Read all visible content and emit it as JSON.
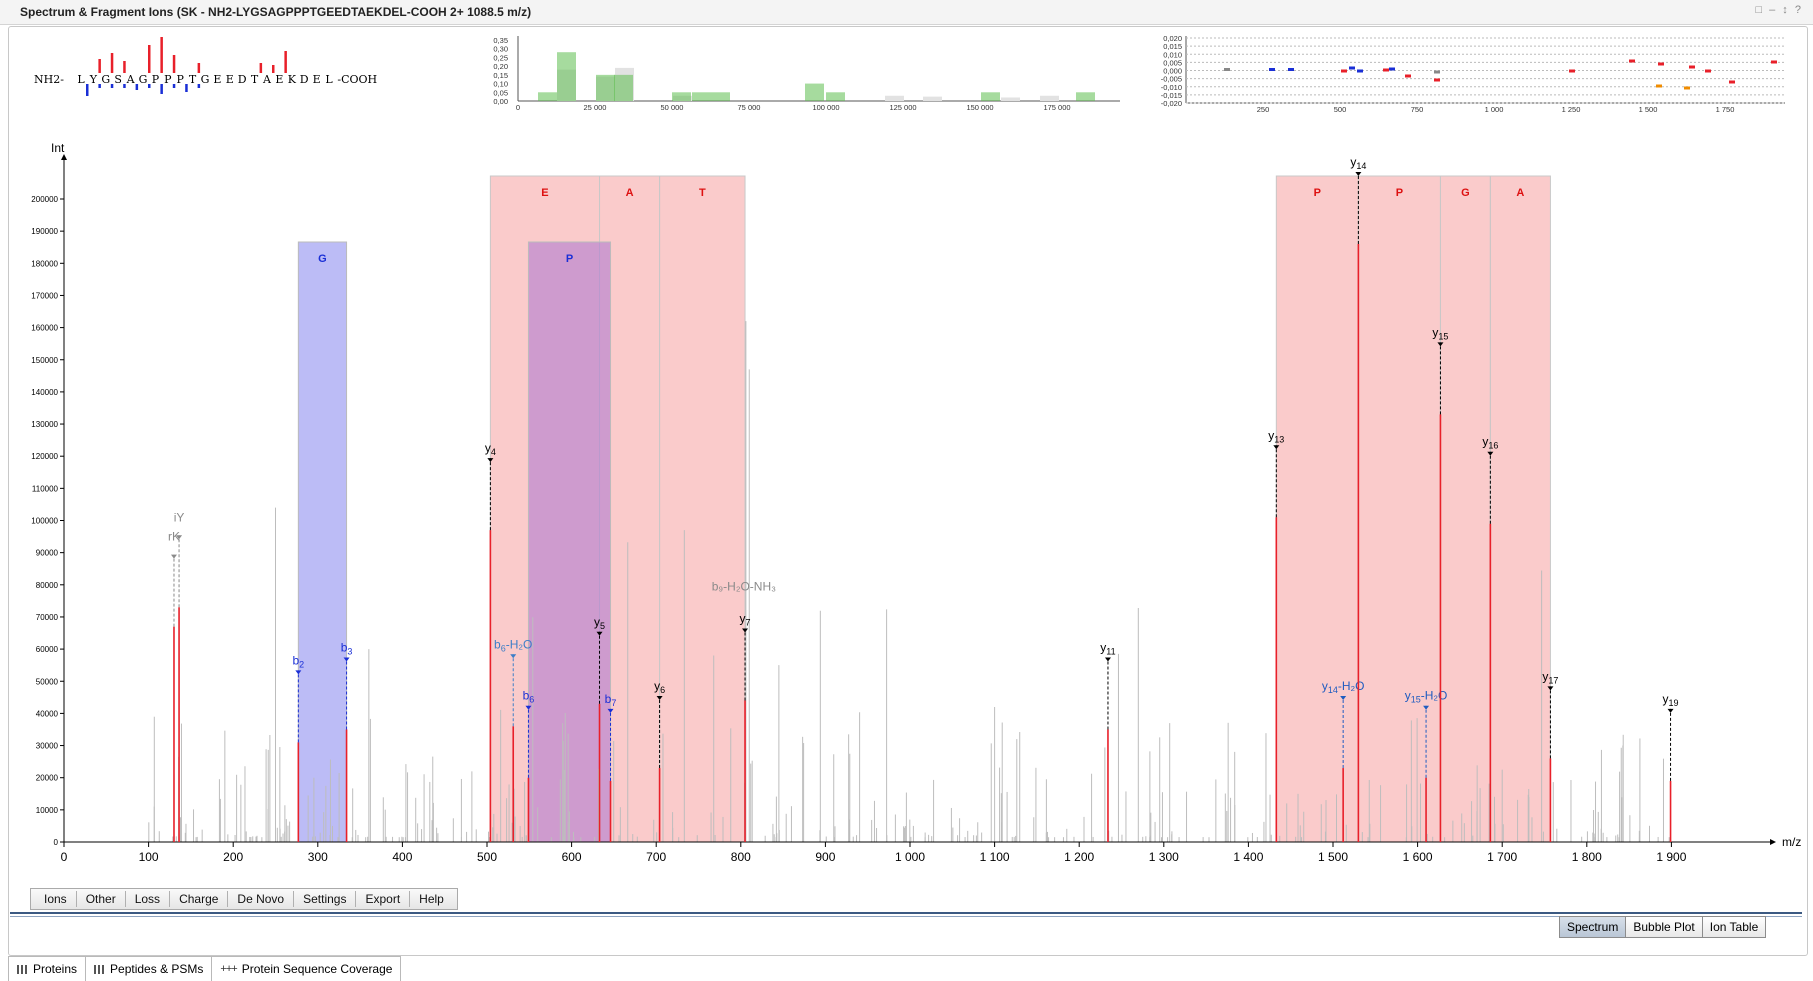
{
  "window": {
    "title": "Spectrum & Fragment Ions (SK - NH2-LYGSAGPPPTGEEDTAEKDEL-COOH   2+   1088.5 m/z)",
    "controls": "□ – ↕ ?"
  },
  "colors": {
    "red": "#e8202a",
    "blue": "#1a2fd6",
    "gray": "#bdbdbd",
    "shade_red": "#f5a0a0",
    "shade_blue": "#9090f0",
    "shade_purple": "#b07cd0",
    "green": "#5cbd4e"
  },
  "sequence_view": {
    "prefix": "NH2-",
    "residues": [
      "L",
      "Y",
      "G",
      "S",
      "A",
      "G",
      "P",
      "P",
      "P",
      "T",
      "G",
      "E",
      "E",
      "D",
      "T",
      "A",
      "E",
      "K",
      "D",
      "E",
      "L"
    ],
    "suffix": "-COOH"
  },
  "histogram": {
    "y_ticks": [
      "0,35",
      "0,30",
      "0,25",
      "0,20",
      "0,15",
      "0,10",
      "0,05",
      "0,00"
    ],
    "x_ticks": [
      "0",
      "25 000",
      "50 000",
      "75 000",
      "100 000",
      "125 000",
      "150 000",
      "175 000"
    ]
  },
  "error_plot": {
    "y_ticks": [
      "0,020",
      "0,015",
      "0,010",
      "0,005",
      "0,000",
      "-0,005",
      "-0,010",
      "-0,015",
      "-0,020"
    ],
    "x_ticks": [
      "250",
      "500",
      "750",
      "1 000",
      "1 250",
      "1 500",
      "1 750"
    ]
  },
  "chart_data": {
    "type": "bar",
    "xlabel": "m/z",
    "ylabel": "Int",
    "xlim": [
      0,
      2000
    ],
    "ylim": [
      0,
      200000
    ],
    "x_ticks": [
      "0",
      "100",
      "200",
      "300",
      "400",
      "500",
      "600",
      "700",
      "800",
      "900",
      "1 000",
      "1 100",
      "1 200",
      "1 300",
      "1 400",
      "1 500",
      "1 600",
      "1 700",
      "1 800",
      "1 900"
    ],
    "y_ticks": [
      "0",
      "10000",
      "20000",
      "30000",
      "40000",
      "50000",
      "60000",
      "70000",
      "80000",
      "90000",
      "100000",
      "110000",
      "120000",
      "130000",
      "140000",
      "150000",
      "160000",
      "170000",
      "180000",
      "190000",
      "200000"
    ],
    "annotated_peaks": [
      {
        "mz": 130,
        "int": 67000,
        "label": "rK",
        "type": "other"
      },
      {
        "mz": 136,
        "int": 73000,
        "label": "iY",
        "type": "other"
      },
      {
        "mz": 277,
        "int": 31000,
        "label": "b2",
        "type": "b"
      },
      {
        "mz": 334,
        "int": 35000,
        "label": "b3",
        "type": "b"
      },
      {
        "mz": 504,
        "int": 97000,
        "label": "y4",
        "type": "y"
      },
      {
        "mz": 531,
        "int": 36000,
        "label": "b6-H2O",
        "type": "bloss"
      },
      {
        "mz": 549,
        "int": 20000,
        "label": "b6",
        "type": "b"
      },
      {
        "mz": 633,
        "int": 43000,
        "label": "y5",
        "type": "y"
      },
      {
        "mz": 646,
        "int": 19000,
        "label": "b7",
        "type": "b"
      },
      {
        "mz": 704,
        "int": 23000,
        "label": "y6",
        "type": "y"
      },
      {
        "mz": 805,
        "int": 44000,
        "label": "y7",
        "type": "y"
      },
      {
        "mz": 806,
        "int": 44000,
        "label": "b9-H2O-NH3",
        "type": "other"
      },
      {
        "mz": 1234,
        "int": 35000,
        "label": "y11",
        "type": "y"
      },
      {
        "mz": 1433,
        "int": 101000,
        "label": "y13",
        "type": "y"
      },
      {
        "mz": 1512,
        "int": 23000,
        "label": "y14-H2O",
        "type": "yloss"
      },
      {
        "mz": 1530,
        "int": 186000,
        "label": "y14",
        "type": "y"
      },
      {
        "mz": 1610,
        "int": 20000,
        "label": "y15-H2O",
        "type": "yloss"
      },
      {
        "mz": 1627,
        "int": 133000,
        "label": "y15",
        "type": "y"
      },
      {
        "mz": 1686,
        "int": 99000,
        "label": "y16",
        "type": "y"
      },
      {
        "mz": 1757,
        "int": 26000,
        "label": "y17",
        "type": "y"
      },
      {
        "mz": 1899,
        "int": 19000,
        "label": "y19",
        "type": "y"
      }
    ],
    "sequence_tags": [
      {
        "residue": "G",
        "from": 277,
        "to": 334,
        "series": "b"
      },
      {
        "residue": "P",
        "from": 549,
        "to": 646,
        "series": "b"
      },
      {
        "residue": "E",
        "from": 504,
        "to": 633,
        "series": "y"
      },
      {
        "residue": "A",
        "from": 633,
        "to": 704,
        "series": "y"
      },
      {
        "residue": "T",
        "from": 704,
        "to": 805,
        "series": "y"
      },
      {
        "residue": "P",
        "from": 1433,
        "to": 1530,
        "series": "y"
      },
      {
        "residue": "P",
        "from": 1530,
        "to": 1627,
        "series": "y"
      },
      {
        "residue": "G",
        "from": 1627,
        "to": 1686,
        "series": "y"
      },
      {
        "residue": "A",
        "from": 1686,
        "to": 1757,
        "series": "y"
      }
    ],
    "background_peaks_present": true
  },
  "ion_tabs": [
    "Ions",
    "Other",
    "Loss",
    "Charge",
    "De Novo",
    "Settings",
    "Export",
    "Help"
  ],
  "view_buttons": [
    "Spectrum",
    "Bubble Plot",
    "Ion Table"
  ],
  "bottom_tabs": [
    "Proteins",
    "Peptides & PSMs",
    "Protein Sequence Coverage"
  ]
}
